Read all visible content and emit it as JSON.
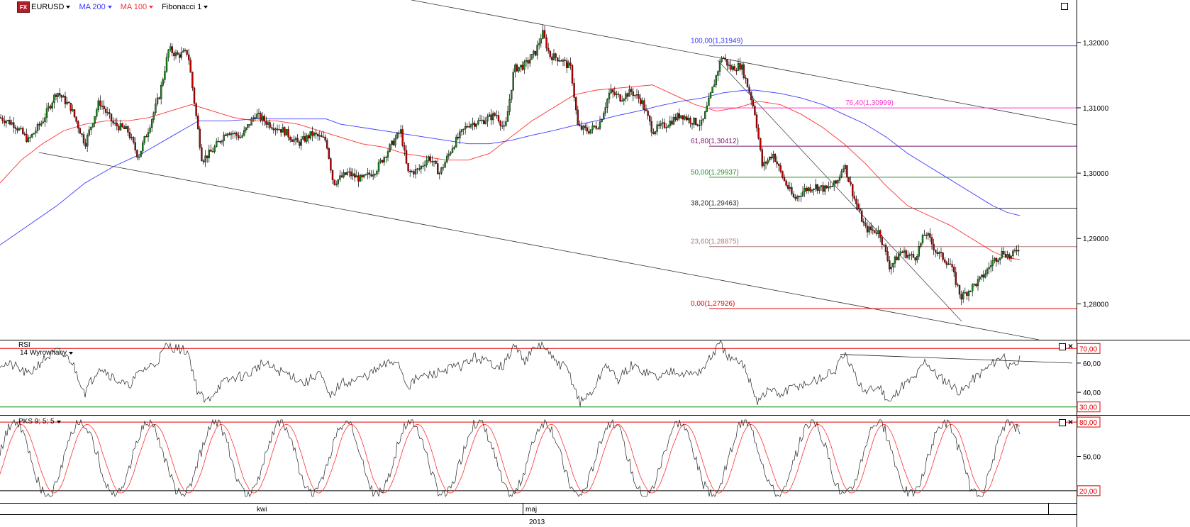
{
  "toolbar": {
    "icon_text": "FX",
    "symbol": "EURUSD",
    "ma200": "MA 200",
    "ma100": "MA 100",
    "fibonacci": "Fibonacci 1"
  },
  "colors": {
    "ma200": "#3a3aff",
    "ma100": "#ff3030",
    "candle_up": "#1a8c1a",
    "candle_down": "#c00000",
    "rsi_upper": "#e00000",
    "rsi_lower": "#008000",
    "label_box": "#e00000"
  },
  "chart_data": [
    {
      "type": "line",
      "panel": "price",
      "symbol": "EURUSD",
      "ylim": [
        1.2745,
        1.3265
      ],
      "yticks": [
        "1,32000",
        "1,31000",
        "1,30000",
        "1,29000",
        "1,28000"
      ],
      "ytick_values": [
        1.32,
        1.31,
        1.3,
        1.29,
        1.28
      ],
      "xlabels": [
        "kwi",
        "maj"
      ],
      "year_label": "2013",
      "fibonacci": [
        {
          "label": "100,00(1,31949)",
          "value": 1.31949,
          "color": "#3a3aff"
        },
        {
          "label": "76,40(1,30999)",
          "value": 1.30999,
          "color": "#ff33cc"
        },
        {
          "label": "61,80(1,30412)",
          "value": 1.30412,
          "color": "#7a1a6a"
        },
        {
          "label": "50,00(1,29937)",
          "value": 1.29937,
          "color": "#2a8a2a"
        },
        {
          "label": "38,20(1,29463)",
          "value": 1.29463,
          "color": "#333333"
        },
        {
          "label": "23,60(1,28875)",
          "value": 1.28875,
          "color": "#b08080"
        },
        {
          "label": "0,00(1,27926)",
          "value": 1.27926,
          "color": "#e00000"
        }
      ],
      "close_path": [
        [
          0,
          1.3085
        ],
        [
          20,
          1.3075
        ],
        [
          40,
          1.305
        ],
        [
          60,
          1.308
        ],
        [
          80,
          1.3125
        ],
        [
          100,
          1.31
        ],
        [
          120,
          1.3045
        ],
        [
          140,
          1.311
        ],
        [
          160,
          1.3075
        ],
        [
          180,
          1.3065
        ],
        [
          195,
          1.3025
        ],
        [
          210,
          1.307
        ],
        [
          225,
          1.312
        ],
        [
          238,
          1.319
        ],
        [
          250,
          1.318
        ],
        [
          265,
          1.3185
        ],
        [
          278,
          1.3075
        ],
        [
          285,
          1.302
        ],
        [
          300,
          1.3035
        ],
        [
          320,
          1.3065
        ],
        [
          340,
          1.3055
        ],
        [
          360,
          1.309
        ],
        [
          380,
          1.3075
        ],
        [
          400,
          1.3065
        ],
        [
          420,
          1.3045
        ],
        [
          440,
          1.306
        ],
        [
          460,
          1.305
        ],
        [
          470,
          1.2985
        ],
        [
          490,
          1.3
        ],
        [
          510,
          1.299
        ],
        [
          530,
          1.3005
        ],
        [
          550,
          1.304
        ],
        [
          565,
          1.3065
        ],
        [
          575,
          1.3
        ],
        [
          590,
          1.3005
        ],
        [
          605,
          1.3025
        ],
        [
          620,
          1.3
        ],
        [
          640,
          1.3045
        ],
        [
          660,
          1.3075
        ],
        [
          680,
          1.308
        ],
        [
          700,
          1.309
        ],
        [
          712,
          1.3065
        ],
        [
          725,
          1.316
        ],
        [
          740,
          1.3165
        ],
        [
          755,
          1.3185
        ],
        [
          765,
          1.3215
        ],
        [
          775,
          1.318
        ],
        [
          790,
          1.3175
        ],
        [
          805,
          1.316
        ],
        [
          815,
          1.307
        ],
        [
          830,
          1.3065
        ],
        [
          845,
          1.3075
        ],
        [
          860,
          1.3125
        ],
        [
          875,
          1.3115
        ],
        [
          890,
          1.3125
        ],
        [
          905,
          1.311
        ],
        [
          920,
          1.3065
        ],
        [
          940,
          1.3075
        ],
        [
          960,
          1.309
        ],
        [
          975,
          1.308
        ],
        [
          990,
          1.3075
        ],
        [
          1005,
          1.313
        ],
        [
          1018,
          1.318
        ],
        [
          1030,
          1.316
        ],
        [
          1045,
          1.3165
        ],
        [
          1058,
          1.312
        ],
        [
          1065,
          1.309
        ],
        [
          1075,
          1.301
        ],
        [
          1090,
          1.303
        ],
        [
          1105,
          1.299
        ],
        [
          1120,
          1.296
        ],
        [
          1135,
          1.2975
        ],
        [
          1150,
          1.298
        ],
        [
          1165,
          1.2975
        ],
        [
          1180,
          1.2985
        ],
        [
          1190,
          1.3015
        ],
        [
          1205,
          1.296
        ],
        [
          1220,
          1.2915
        ],
        [
          1240,
          1.291
        ],
        [
          1255,
          1.2855
        ],
        [
          1270,
          1.288
        ],
        [
          1290,
          1.287
        ],
        [
          1305,
          1.291
        ],
        [
          1320,
          1.288
        ],
        [
          1340,
          1.286
        ],
        [
          1355,
          1.281
        ],
        [
          1370,
          1.2825
        ],
        [
          1385,
          1.284
        ],
        [
          1400,
          1.2865
        ],
        [
          1415,
          1.288
        ],
        [
          1425,
          1.287
        ],
        [
          1438,
          1.289
        ]
      ],
      "ma100_path": [
        [
          0,
          1.2985
        ],
        [
          30,
          1.302
        ],
        [
          60,
          1.3045
        ],
        [
          90,
          1.3065
        ],
        [
          120,
          1.3075
        ],
        [
          150,
          1.308
        ],
        [
          180,
          1.308
        ],
        [
          210,
          1.3085
        ],
        [
          240,
          1.3095
        ],
        [
          270,
          1.3105
        ],
        [
          300,
          1.3095
        ],
        [
          330,
          1.3085
        ],
        [
          360,
          1.308
        ],
        [
          390,
          1.308
        ],
        [
          420,
          1.3075
        ],
        [
          450,
          1.3065
        ],
        [
          480,
          1.3055
        ],
        [
          510,
          1.3045
        ],
        [
          540,
          1.304
        ],
        [
          570,
          1.303
        ],
        [
          600,
          1.3025
        ],
        [
          630,
          1.302
        ],
        [
          660,
          1.302
        ],
        [
          690,
          1.303
        ],
        [
          720,
          1.3055
        ],
        [
          750,
          1.308
        ],
        [
          780,
          1.31
        ],
        [
          810,
          1.312
        ],
        [
          840,
          1.3127
        ],
        [
          870,
          1.313
        ],
        [
          900,
          1.3133
        ],
        [
          920,
          1.3135
        ],
        [
          950,
          1.312
        ],
        [
          980,
          1.3105
        ],
        [
          1010,
          1.3095
        ],
        [
          1040,
          1.31
        ],
        [
          1070,
          1.311
        ],
        [
          1100,
          1.3105
        ],
        [
          1130,
          1.309
        ],
        [
          1160,
          1.307
        ],
        [
          1190,
          1.3045
        ],
        [
          1220,
          1.3015
        ],
        [
          1250,
          1.298
        ],
        [
          1280,
          1.295
        ],
        [
          1310,
          1.2935
        ],
        [
          1340,
          1.292
        ],
        [
          1370,
          1.29
        ],
        [
          1400,
          1.288
        ],
        [
          1420,
          1.287
        ],
        [
          1438,
          1.2868
        ]
      ],
      "ma200_path": [
        [
          0,
          1.289
        ],
        [
          40,
          1.292
        ],
        [
          80,
          1.295
        ],
        [
          120,
          1.2985
        ],
        [
          160,
          1.301
        ],
        [
          200,
          1.303
        ],
        [
          240,
          1.3055
        ],
        [
          280,
          1.308
        ],
        [
          320,
          1.308
        ],
        [
          360,
          1.3083
        ],
        [
          400,
          1.3083
        ],
        [
          440,
          1.3083
        ],
        [
          460,
          1.3083
        ],
        [
          480,
          1.3075
        ],
        [
          510,
          1.307
        ],
        [
          540,
          1.3065
        ],
        [
          570,
          1.306
        ],
        [
          600,
          1.3055
        ],
        [
          630,
          1.305
        ],
        [
          660,
          1.3045
        ],
        [
          690,
          1.3045
        ],
        [
          720,
          1.305
        ],
        [
          750,
          1.3058
        ],
        [
          780,
          1.3065
        ],
        [
          810,
          1.3073
        ],
        [
          840,
          1.308
        ],
        [
          870,
          1.3088
        ],
        [
          900,
          1.3095
        ],
        [
          930,
          1.3103
        ],
        [
          960,
          1.311
        ],
        [
          990,
          1.3115
        ],
        [
          1020,
          1.3123
        ],
        [
          1050,
          1.3127
        ],
        [
          1065,
          1.3127
        ],
        [
          1100,
          1.3122
        ],
        [
          1130,
          1.3115
        ],
        [
          1160,
          1.3105
        ],
        [
          1190,
          1.309
        ],
        [
          1220,
          1.3075
        ],
        [
          1250,
          1.3055
        ],
        [
          1280,
          1.303
        ],
        [
          1310,
          1.301
        ],
        [
          1340,
          1.299
        ],
        [
          1370,
          1.297
        ],
        [
          1400,
          1.295
        ],
        [
          1420,
          1.294
        ],
        [
          1438,
          1.2935
        ]
      ]
    },
    {
      "type": "line",
      "panel": "rsi",
      "title": "RSI",
      "subtitle": "14 Wyrownany",
      "ylim": [
        25,
        75
      ],
      "upper_level": "70,00",
      "lower_level": "30,00",
      "upper_value": 70,
      "lower_value": 30,
      "yticks": [
        "60,00",
        "40,00"
      ],
      "ytick_values": [
        60,
        40
      ],
      "path": [
        [
          0,
          60
        ],
        [
          20,
          58
        ],
        [
          40,
          52
        ],
        [
          60,
          62
        ],
        [
          80,
          68
        ],
        [
          100,
          62
        ],
        [
          120,
          40
        ],
        [
          140,
          58
        ],
        [
          160,
          50
        ],
        [
          180,
          44
        ],
        [
          200,
          55
        ],
        [
          220,
          60
        ],
        [
          235,
          72
        ],
        [
          250,
          70
        ],
        [
          265,
          68
        ],
        [
          278,
          42
        ],
        [
          290,
          33
        ],
        [
          310,
          45
        ],
        [
          330,
          50
        ],
        [
          350,
          52
        ],
        [
          370,
          60
        ],
        [
          390,
          55
        ],
        [
          410,
          52
        ],
        [
          430,
          46
        ],
        [
          450,
          54
        ],
        [
          465,
          36
        ],
        [
          480,
          46
        ],
        [
          500,
          48
        ],
        [
          520,
          52
        ],
        [
          540,
          58
        ],
        [
          560,
          62
        ],
        [
          575,
          44
        ],
        [
          590,
          50
        ],
        [
          610,
          52
        ],
        [
          630,
          56
        ],
        [
          650,
          58
        ],
        [
          670,
          64
        ],
        [
          690,
          60
        ],
        [
          710,
          58
        ],
        [
          725,
          72
        ],
        [
          740,
          62
        ],
        [
          755,
          70
        ],
        [
          765,
          73
        ],
        [
          780,
          62
        ],
        [
          800,
          56
        ],
        [
          818,
          33
        ],
        [
          835,
          40
        ],
        [
          855,
          60
        ],
        [
          870,
          48
        ],
        [
          890,
          58
        ],
        [
          910,
          54
        ],
        [
          930,
          50
        ],
        [
          950,
          56
        ],
        [
          970,
          52
        ],
        [
          990,
          55
        ],
        [
          1005,
          66
        ],
        [
          1015,
          73
        ],
        [
          1030,
          62
        ],
        [
          1050,
          58
        ],
        [
          1068,
          34
        ],
        [
          1085,
          42
        ],
        [
          1100,
          38
        ],
        [
          1120,
          44
        ],
        [
          1140,
          46
        ],
        [
          1160,
          50
        ],
        [
          1180,
          56
        ],
        [
          1190,
          66
        ],
        [
          1205,
          52
        ],
        [
          1220,
          40
        ],
        [
          1240,
          44
        ],
        [
          1255,
          33
        ],
        [
          1270,
          44
        ],
        [
          1290,
          50
        ],
        [
          1305,
          62
        ],
        [
          1320,
          52
        ],
        [
          1340,
          46
        ],
        [
          1355,
          40
        ],
        [
          1370,
          48
        ],
        [
          1385,
          54
        ],
        [
          1400,
          60
        ],
        [
          1415,
          66
        ],
        [
          1425,
          56
        ],
        [
          1438,
          62
        ]
      ],
      "trendline_x": [
        1185,
        1512
      ],
      "trendline_y": [
        66,
        60
      ]
    },
    {
      "type": "line",
      "panel": "stochastic",
      "title": "PKS 9; 5; 5",
      "ylim": [
        10,
        85
      ],
      "upper_level": "80,00",
      "lower_level": "20,00",
      "upper_value": 80,
      "lower_value": 20,
      "yticks": [
        "50,00"
      ],
      "ytick_values": [
        50
      ]
    }
  ]
}
